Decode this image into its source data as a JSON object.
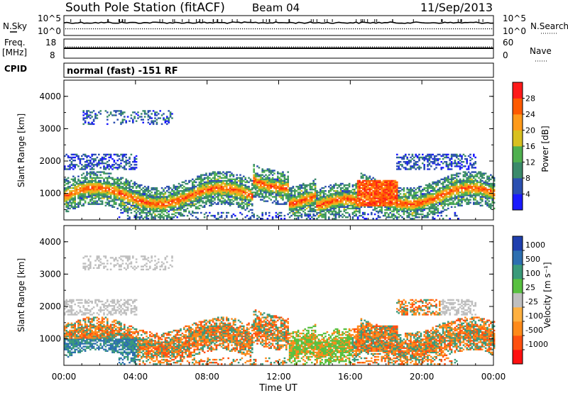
{
  "header": {
    "station": "South Pole Station (fitACF)",
    "beam": "Beam 04",
    "date": "11/Sep/2013"
  },
  "left_labels": {
    "nsky": "N.Sky",
    "freq": "Freq.",
    "freq_unit": "[MHz]",
    "cpid": "CPID"
  },
  "right_labels": {
    "nsearch": "N.Search",
    "nave": "Nave"
  },
  "noise_axis": {
    "left_top": "10^5",
    "left_bottom": "10^0",
    "right_top": "10^5",
    "right_bottom": "10^0"
  },
  "freq_axis": {
    "left_top": "18",
    "left_bottom": "8",
    "right_top": "60",
    "right_bottom": "0"
  },
  "cpid_text": "normal (fast) -151 RF",
  "colors": {
    "power_scale": [
      "#1a1aff",
      "#2b4fb0",
      "#3a8a6a",
      "#4fb04f",
      "#d8c020",
      "#ff9a1a",
      "#ff5a00",
      "#ff1a1a"
    ],
    "velocity_scale": [
      "#1f3fae",
      "#2d6fb0",
      "#3a9a7a",
      "#58c040",
      "#bfbfbf",
      "#ffb040",
      "#ff8a1a",
      "#ff5010",
      "#ff1010"
    ]
  },
  "chart_data": [
    {
      "type": "heatmap",
      "panel": "power",
      "ylabel": "Slant Range [km]",
      "ylim": [
        180,
        4500
      ],
      "yticks": [
        "1000",
        "2000",
        "3000",
        "4000"
      ],
      "colorbar_label": "Power [dB]",
      "colorbar_ticks": [
        "4",
        "8",
        "12",
        "16",
        "20",
        "24",
        "28"
      ],
      "colorbar_range": [
        0,
        32
      ]
    },
    {
      "type": "heatmap",
      "panel": "velocity",
      "ylabel": "Slant Range [km]",
      "ylim": [
        180,
        4500
      ],
      "yticks": [
        "1000",
        "2000",
        "3000",
        "4000"
      ],
      "colorbar_label": "Velocity [m s⁻¹]",
      "colorbar_ticks": [
        "1000",
        "500",
        "100",
        "25",
        "-25",
        "-100",
        "-500",
        "-1000"
      ]
    }
  ],
  "xaxis": {
    "label": "Time UT",
    "ticks": [
      "00:00",
      "04:00",
      "08:00",
      "12:00",
      "16:00",
      "20:00",
      "00:00"
    ],
    "range_hours": [
      0,
      24
    ]
  }
}
